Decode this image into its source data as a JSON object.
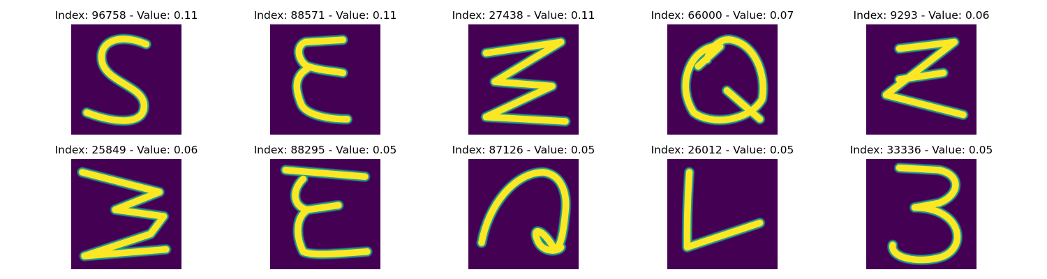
{
  "figure": {
    "background": "#ffffff",
    "image_background": "#440154",
    "stroke_core": "#fde725",
    "stroke_edge": "#20a386",
    "stroke_halo": "#3b528b"
  },
  "chart_data": {
    "type": "image_grid",
    "rows": 2,
    "cols": 5,
    "colormap": "viridis",
    "panels": [
      {
        "index": 96758,
        "value": 0.11,
        "title": "Index: 96758 - Value: 0.11",
        "glyph": "S"
      },
      {
        "index": 88571,
        "value": 0.11,
        "title": "Index: 88571 - Value: 0.11",
        "glyph": "E (script)"
      },
      {
        "index": 27438,
        "value": 0.11,
        "title": "Index: 27438 - Value: 0.11",
        "glyph": "Σ"
      },
      {
        "index": 66000,
        "value": 0.07,
        "title": "Index: 66000 - Value: 0.07",
        "glyph": "Q"
      },
      {
        "index": 9293,
        "value": 0.06,
        "title": "Index: 9293 - Value: 0.06",
        "glyph": "Z"
      },
      {
        "index": 25849,
        "value": 0.06,
        "title": "Index: 25849 - Value: 0.06",
        "glyph": "Σ (wide)"
      },
      {
        "index": 88295,
        "value": 0.05,
        "title": "Index: 88295 - Value: 0.05",
        "glyph": "E (script)"
      },
      {
        "index": 87126,
        "value": 0.05,
        "title": "Index: 87126 - Value: 0.05",
        "glyph": "a"
      },
      {
        "index": 26012,
        "value": 0.05,
        "title": "Index: 26012 - Value: 0.05",
        "glyph": "L"
      },
      {
        "index": 33336,
        "value": 0.05,
        "title": "Index: 33336 - Value: 0.05",
        "glyph": "3"
      }
    ]
  }
}
